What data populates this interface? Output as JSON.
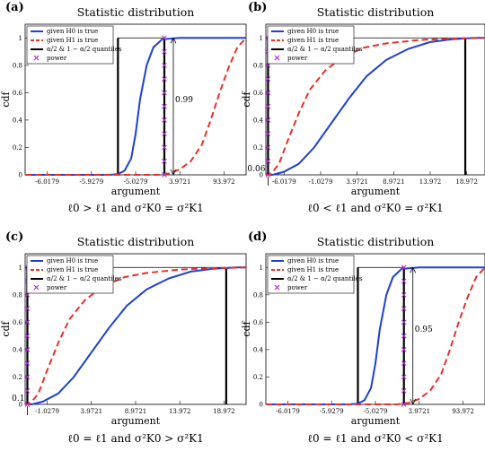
{
  "chart_data": [
    {
      "panel": "(a)",
      "type": "line",
      "title": "Statistic distribution",
      "xlabel": "argument",
      "ylabel": "cdf",
      "xticks": [
        "-6.0179",
        "-5.9279",
        "-5.0279",
        "3.9721",
        "93.972"
      ],
      "yticks": [
        "0",
        "0.2",
        "0.4",
        "0.6",
        "0.8",
        "1"
      ],
      "ylim": [
        0,
        1.1
      ],
      "legend": [
        "given H0 is true",
        "given H1 is true",
        "α/2 & 1 − α/2 quantiles",
        "power"
      ],
      "legend_placement": "top-left",
      "series": [
        {
          "name": "given H0 is true",
          "color": "#1f3fd6",
          "style": "solid",
          "x": [
            0,
            0.2,
            0.38,
            0.42,
            0.45,
            0.48,
            0.5,
            0.52,
            0.55,
            0.58,
            0.62,
            0.7,
            1.0
          ],
          "y": [
            0,
            0,
            0,
            0.005,
            0.03,
            0.12,
            0.3,
            0.55,
            0.8,
            0.93,
            0.99,
            1,
            1
          ]
        },
        {
          "name": "given H1 is true",
          "color": "#e8302a",
          "style": "dashed",
          "x": [
            0,
            0.4,
            0.6,
            0.65,
            0.7,
            0.75,
            0.8,
            0.84,
            0.88,
            0.92,
            0.96,
            1.0
          ],
          "y": [
            0,
            0,
            0,
            0.01,
            0.04,
            0.1,
            0.22,
            0.4,
            0.6,
            0.78,
            0.93,
            1
          ]
        }
      ],
      "quantiles_x": [
        0.42,
        0.63
      ],
      "power_x": 0.63,
      "annotation": "0.99",
      "caption": "ℓ0 > ℓ1 and σ²K0 = σ²K1"
    },
    {
      "panel": "(b)",
      "type": "line",
      "title": "Statistic distribution",
      "xlabel": "argument",
      "ylabel": "cdf",
      "xticks": [
        "-6.0179",
        "-1.0279",
        "3.9721",
        "8.9721",
        "13.972",
        "18.972"
      ],
      "yticks": [
        "0",
        "0.2",
        "0.4",
        "0.6",
        "0.8",
        "1"
      ],
      "ylim": [
        0,
        1.1
      ],
      "legend": [
        "given H0 is true",
        "given H1 is true",
        "α/2 & 1 − α/2 quantiles",
        "power"
      ],
      "legend_placement": "top-left",
      "series": [
        {
          "name": "given H0 is true",
          "color": "#1f3fd6",
          "style": "solid",
          "x": [
            0,
            0.03,
            0.08,
            0.15,
            0.22,
            0.3,
            0.38,
            0.46,
            0.55,
            0.65,
            0.75,
            0.85,
            0.95,
            1.0
          ],
          "y": [
            0,
            0,
            0.02,
            0.08,
            0.2,
            0.38,
            0.56,
            0.72,
            0.84,
            0.92,
            0.97,
            0.99,
            1,
            1
          ]
        },
        {
          "name": "given H1 is true",
          "color": "#e8302a",
          "style": "dashed",
          "x": [
            0,
            0.02,
            0.06,
            0.1,
            0.15,
            0.2,
            0.27,
            0.35,
            0.45,
            0.55,
            0.7,
            0.85,
            1.0
          ],
          "y": [
            0,
            0,
            0.08,
            0.25,
            0.45,
            0.62,
            0.76,
            0.86,
            0.93,
            0.96,
            0.985,
            0.995,
            1
          ]
        }
      ],
      "quantiles_x": [
        0.01,
        0.91
      ],
      "power_x": 0.01,
      "annotation": "0.06",
      "caption": "ℓ0 < ℓ1 and σ²K0 = σ²K1"
    },
    {
      "panel": "(c)",
      "type": "line",
      "title": "Statistic distribution",
      "xlabel": "argument",
      "ylabel": "cdf",
      "xticks": [
        "-1.0279",
        "3.9721",
        "8.9721",
        "13.972",
        "18.972"
      ],
      "yticks": [
        "0",
        "0.2",
        "0.4",
        "0.6",
        "0.8",
        "1"
      ],
      "ylim": [
        0,
        1.1
      ],
      "legend": [
        "given H0 is true",
        "given H1 is true",
        "α/2 & 1 − α/2 quantiles",
        "power"
      ],
      "legend_placement": "top-left",
      "series": [
        {
          "name": "given H0 is true",
          "color": "#1f3fd6",
          "style": "solid",
          "x": [
            0,
            0.03,
            0.08,
            0.15,
            0.22,
            0.3,
            0.38,
            0.46,
            0.55,
            0.65,
            0.75,
            0.85,
            0.95,
            1.0
          ],
          "y": [
            0,
            0,
            0.02,
            0.08,
            0.2,
            0.38,
            0.56,
            0.72,
            0.84,
            0.92,
            0.97,
            0.99,
            1,
            1
          ]
        },
        {
          "name": "given H1 is true",
          "color": "#e8302a",
          "style": "dashed",
          "x": [
            0,
            0.02,
            0.06,
            0.1,
            0.15,
            0.2,
            0.27,
            0.35,
            0.45,
            0.55,
            0.7,
            0.85,
            1.0
          ],
          "y": [
            0,
            0,
            0.08,
            0.25,
            0.45,
            0.62,
            0.76,
            0.86,
            0.93,
            0.96,
            0.985,
            0.995,
            1
          ]
        }
      ],
      "quantiles_x": [
        0.01,
        0.91
      ],
      "power_x": 0.01,
      "annotation": "0.1",
      "caption": "ℓ0 = ℓ1 and σ²K0 > σ²K1"
    },
    {
      "panel": "(d)",
      "type": "line",
      "title": "Statistic distribution",
      "xlabel": "argument",
      "ylabel": "cdf",
      "xticks": [
        "-6.0179",
        "-5.9279",
        "-5.0279",
        "3.9721",
        "93.972"
      ],
      "yticks": [
        "0",
        "0.2",
        "0.4",
        "0.6",
        "0.8",
        "1"
      ],
      "ylim": [
        0,
        1.1
      ],
      "legend": [
        "given H0 is true",
        "given H1 is true",
        "α/2 & 1 − α/2 quantiles",
        "power"
      ],
      "legend_placement": "top-left",
      "series": [
        {
          "name": "given H0 is true",
          "color": "#1f3fd6",
          "style": "solid",
          "x": [
            0,
            0.2,
            0.38,
            0.42,
            0.45,
            0.48,
            0.5,
            0.52,
            0.55,
            0.58,
            0.62,
            0.7,
            1.0
          ],
          "y": [
            0,
            0,
            0,
            0.005,
            0.03,
            0.12,
            0.3,
            0.55,
            0.8,
            0.93,
            0.99,
            1,
            1
          ]
        },
        {
          "name": "given H1 is true",
          "color": "#e8302a",
          "style": "dashed",
          "x": [
            0,
            0.4,
            0.6,
            0.65,
            0.7,
            0.75,
            0.8,
            0.84,
            0.88,
            0.92,
            0.96,
            1.0
          ],
          "y": [
            0,
            0,
            0,
            0.01,
            0.04,
            0.1,
            0.22,
            0.4,
            0.6,
            0.78,
            0.93,
            1
          ]
        }
      ],
      "quantiles_x": [
        0.42,
        0.63
      ],
      "power_x": 0.63,
      "annotation": "0.95",
      "caption": "ℓ0 = ℓ1 and σ²K0 < σ²K1"
    }
  ]
}
